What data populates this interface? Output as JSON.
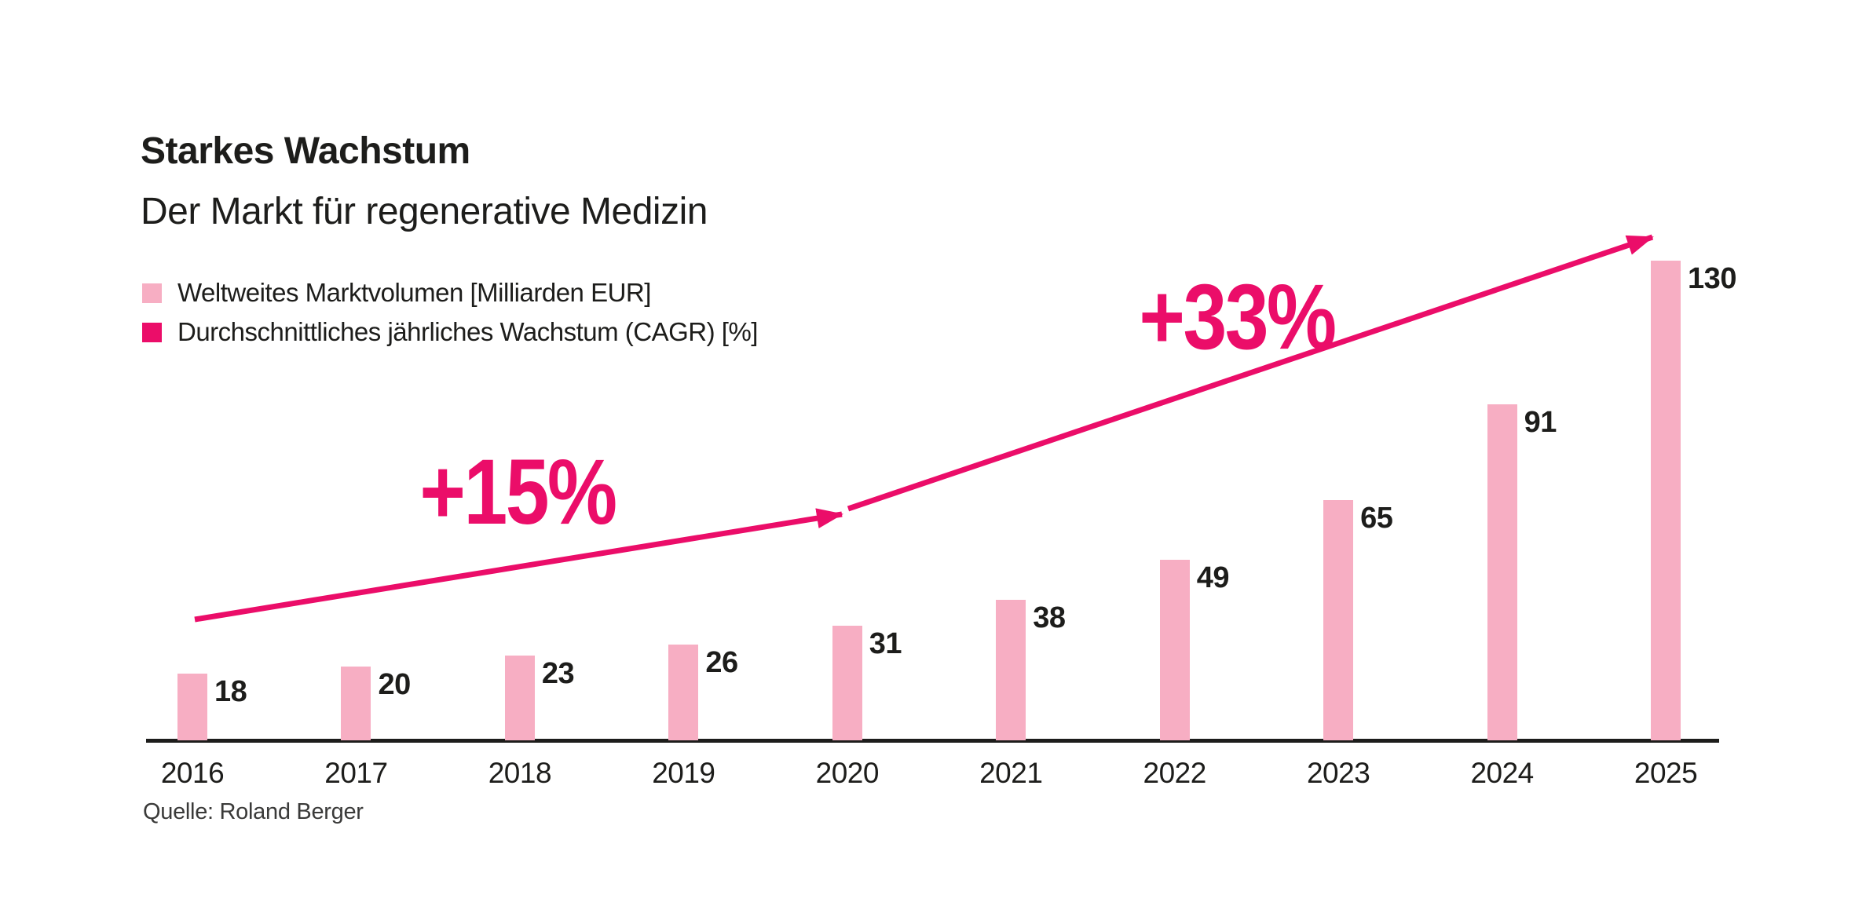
{
  "header": {
    "title": "Starkes Wachstum",
    "subtitle": "Der Markt für regenerative Medizin"
  },
  "legend": {
    "items": [
      {
        "label": "Weltweites Marktvolumen [Milliarden EUR]",
        "color": "#F7AEC3"
      },
      {
        "label": "Durchschnittliches jährliches Wachstum (CAGR) [%]",
        "color": "#EB0D69"
      }
    ]
  },
  "chart_data": {
    "type": "bar",
    "title": "Starkes Wachstum",
    "subtitle": "Der Markt für regenerative Medizin",
    "categories": [
      "2016",
      "2017",
      "2018",
      "2019",
      "2020",
      "2021",
      "2022",
      "2023",
      "2024",
      "2025"
    ],
    "series": [
      {
        "name": "Weltweites Marktvolumen [Milliarden EUR]",
        "values": [
          18,
          20,
          23,
          26,
          31,
          38,
          49,
          65,
          91,
          130
        ]
      }
    ],
    "unit": "Milliarden EUR",
    "ylim": [
      0,
      135
    ],
    "grid": false,
    "value_labels_shown": true,
    "legend_position": "top-left",
    "bar_color": "#F7AEC3",
    "accent_color": "#EB0D69",
    "text_color": "#1d1d1b",
    "annotations": [
      {
        "text": "+15%",
        "arrow_from_year": "2016",
        "arrow_to_year": "2020"
      },
      {
        "text": "+33%",
        "arrow_from_year": "2020",
        "arrow_to_year": "2025"
      }
    ]
  },
  "footer": {
    "source": "Quelle: Roland Berger"
  }
}
